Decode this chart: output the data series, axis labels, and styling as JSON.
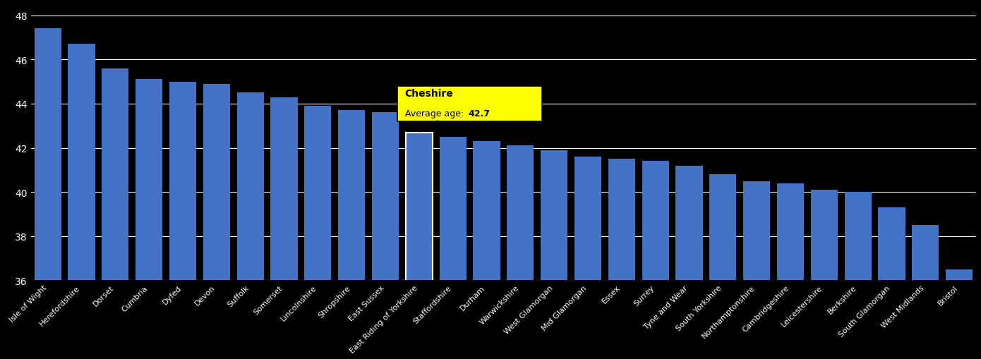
{
  "categories": [
    "Isle of Wight",
    "Herefordshire",
    "Dorset",
    "Cumbria",
    "Dyfed",
    "Devon",
    "Suffolk",
    "Somerset",
    "Lincolnshire",
    "Shropshire",
    "East Sussex",
    "East Riding of Yorkshire",
    "Staffordshire",
    "Durham",
    "Warwickshire",
    "West Glamorgan",
    "Mid Glamorgan",
    "Essex",
    "Surrey",
    "Tyne and Wear",
    "South Yorkshire",
    "Northamptonshire",
    "Cambridgeshire",
    "Leicestershire",
    "Berkshire",
    "South Glamorgan",
    "West Midlands",
    "Bristol"
  ],
  "values": [
    47.4,
    46.7,
    45.6,
    45.1,
    45.0,
    44.9,
    44.5,
    44.3,
    43.9,
    43.7,
    43.6,
    42.7,
    42.5,
    42.3,
    42.1,
    41.9,
    41.6,
    41.5,
    41.4,
    41.2,
    40.8,
    40.5,
    40.4,
    40.1,
    40.0,
    39.3,
    38.5,
    36.5
  ],
  "cheshire_index": 11,
  "cheshire_value": 42.7,
  "bar_color": "#4472C4",
  "highlight_color": "#FFFF00",
  "background_color": "#000000",
  "text_color": "#FFFFFF",
  "grid_color": "#FFFFFF",
  "ylim": [
    36,
    48.5
  ],
  "yticks": [
    36,
    38,
    40,
    42,
    44,
    46,
    48
  ]
}
